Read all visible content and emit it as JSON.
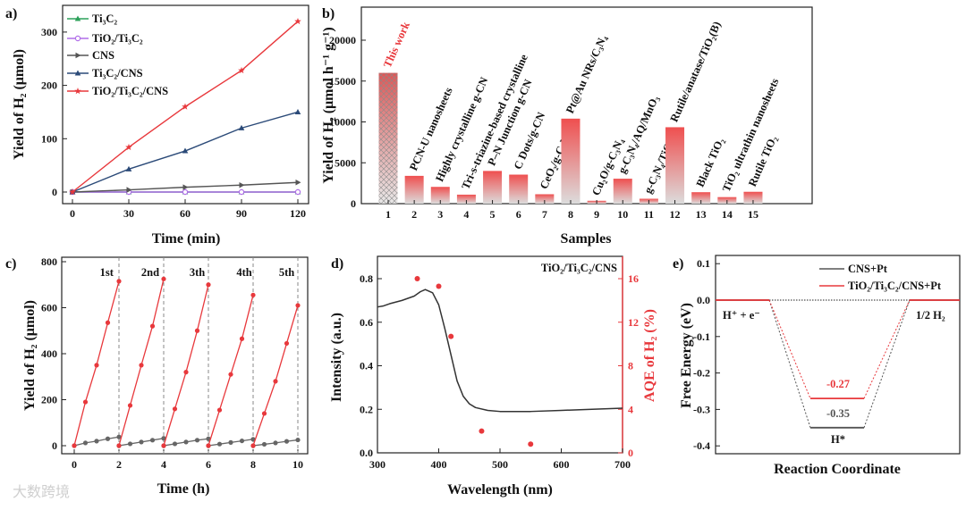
{
  "watermark": "大数跨境",
  "chart_data": [
    {
      "panel": "a)",
      "type": "line",
      "xlabel": "Time (min)",
      "ylabel": "Yield of H₂ (μmol)",
      "x": [
        0,
        30,
        60,
        90,
        120
      ],
      "xlim": [
        -5,
        125
      ],
      "ylim": [
        -18,
        345
      ],
      "xticks": [
        0,
        30,
        60,
        90,
        120
      ],
      "yticks": [
        0,
        100,
        200,
        300
      ],
      "legend_position": "top-left",
      "series": [
        {
          "name": "Ti₃C₂",
          "color": "#2ca05a",
          "marker": "triangle",
          "values": [
            0,
            0,
            0,
            0,
            0
          ]
        },
        {
          "name": "TiO₂/Ti₃C₂",
          "color": "#b06ee8",
          "marker": "circle",
          "values": [
            0,
            0,
            0,
            0,
            0
          ]
        },
        {
          "name": "CNS",
          "color": "#555555",
          "marker": "triangle-right",
          "values": [
            0,
            4,
            9,
            13,
            18
          ]
        },
        {
          "name": "Ti₃C₂/CNS",
          "color": "#2b4a78",
          "marker": "triangle",
          "values": [
            0,
            43,
            77,
            120,
            150
          ]
        },
        {
          "name": "TiO₂/Ti₃C₂/CNS",
          "color": "#e8383c",
          "marker": "star",
          "values": [
            0,
            84,
            160,
            228,
            320
          ]
        }
      ]
    },
    {
      "panel": "b)",
      "type": "bar",
      "xlabel": "Samples",
      "ylabel": "Yield of H₂ (μmol h⁻¹ g⁻¹)",
      "categories": [
        "1",
        "2",
        "3",
        "4",
        "5",
        "6",
        "7",
        "8",
        "9",
        "10",
        "11",
        "12",
        "13",
        "14",
        "15"
      ],
      "values": [
        16000,
        3400,
        2050,
        1100,
        4000,
        3550,
        1150,
        10400,
        350,
        3050,
        600,
        9350,
        1400,
        800,
        1450
      ],
      "bar_labels": [
        "This work",
        "PCN-U nanosheets",
        "Highly crystalline g-CN",
        "Tri-s-triazine-based crystalline",
        "P–N Junction g-CN",
        "C Dots/g-CN",
        "CeO₂/g-C₃N₄",
        "Pt@Au NRs/C₃N₄",
        "Cu₂O/g-C₃N₄",
        "g-C₃N₄/AQ/MnO₃",
        "g-C₃N₄/TiO₂",
        "Rutile/anatase/TiO₂(B)",
        "Black TiO₂",
        "TiO₂ ultrathin nanosheets",
        "Rutile TiO₂"
      ],
      "highlight_color": "#e8383c",
      "ylim": [
        0,
        24000
      ],
      "yticks": [
        0,
        5000,
        10000,
        15000,
        20000
      ]
    },
    {
      "panel": "c)",
      "type": "line",
      "xlabel": "Time (h)",
      "ylabel": "Yield of H₂ (μmol)",
      "xticks": [
        0,
        2,
        4,
        6,
        8,
        10
      ],
      "yticks": [
        0,
        200,
        400,
        600,
        800
      ],
      "xlim": [
        -0.5,
        10.5
      ],
      "ylim": [
        -30,
        820
      ],
      "cycle_labels": [
        "1st",
        "2nd",
        "3th",
        "4th",
        "5th"
      ],
      "cycle_x": [
        0,
        0.5,
        1,
        1.5,
        2
      ],
      "series": [
        {
          "name": "TiO₂/Ti₃C₂/CNS",
          "color": "#e8383c",
          "cycles": [
            [
              0,
              190,
              350,
              535,
              715
            ],
            [
              0,
              175,
              350,
              520,
              725
            ],
            [
              0,
              160,
              320,
              500,
              700
            ],
            [
              0,
              155,
              310,
              465,
              655
            ],
            [
              0,
              140,
              280,
              445,
              610
            ]
          ]
        },
        {
          "name": "CNS",
          "color": "#666666",
          "cycles": [
            [
              0,
              12,
              20,
              30,
              38
            ],
            [
              0,
              8,
              16,
              24,
              32
            ],
            [
              0,
              8,
              16,
              24,
              30
            ],
            [
              0,
              7,
              14,
              21,
              28
            ],
            [
              0,
              6,
              12,
              19,
              25
            ]
          ]
        }
      ]
    },
    {
      "panel": "d)",
      "type": "line",
      "annotation": "TiO₂/Ti₃C₂/CNS",
      "xlabel": "Wavelength (nm)",
      "ylabel": "Intensity (a.u.)",
      "ylabel_right": "AQE of H₂ (%)",
      "xlim": [
        300,
        700
      ],
      "ylim": [
        0,
        0.9
      ],
      "ylim_right": [
        0,
        18
      ],
      "xticks": [
        300,
        400,
        500,
        600,
        700
      ],
      "yticks": [
        0.0,
        0.2,
        0.4,
        0.6,
        0.8
      ],
      "yticks_right": [
        0,
        4,
        8,
        12,
        16
      ],
      "absorbance": {
        "x": [
          300,
          310,
          320,
          340,
          360,
          370,
          378,
          390,
          400,
          410,
          420,
          430,
          440,
          450,
          460,
          480,
          500,
          550,
          600,
          650,
          700
        ],
        "y": [
          0.67,
          0.675,
          0.685,
          0.7,
          0.72,
          0.74,
          0.75,
          0.735,
          0.68,
          0.57,
          0.45,
          0.33,
          0.26,
          0.225,
          0.208,
          0.195,
          0.19,
          0.19,
          0.195,
          0.2,
          0.205
        ],
        "color": "#333333"
      },
      "aqe": {
        "x": [
          365,
          400,
          420,
          470,
          550
        ],
        "y": [
          16.0,
          15.3,
          10.7,
          2.0,
          0.8
        ],
        "color": "#e8383c"
      }
    },
    {
      "panel": "e)",
      "type": "line",
      "xlabel": "Reaction Coordinate",
      "ylabel": "Free Energy (eV)",
      "ylim": [
        -0.43,
        0.12
      ],
      "yticks": [
        0.1,
        0.0,
        -0.1,
        -0.2,
        -0.3,
        -0.4
      ],
      "states": [
        "H⁺ + e⁻",
        "H*",
        "1/2 H₂"
      ],
      "series": [
        {
          "name": "CNS+Pt",
          "color": "#555555",
          "values": [
            0,
            -0.35,
            0
          ],
          "label": "-0.35"
        },
        {
          "name": "TiO₂/Ti₃C₂/CNS+Pt",
          "color": "#e8383c",
          "values": [
            0,
            -0.27,
            0
          ],
          "label": "-0.27"
        }
      ],
      "legend_position": "top-right"
    }
  ]
}
